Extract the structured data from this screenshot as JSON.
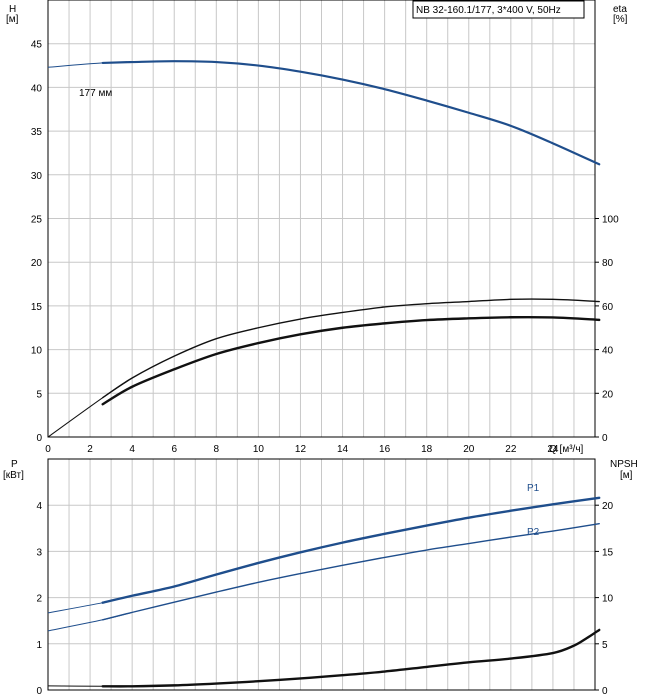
{
  "colors": {
    "grid": "#c8c8c8",
    "axis": "#000000",
    "head_curve": "#1f4e8c",
    "power_curve": "#1f4e8c",
    "eta_curve": "#111111",
    "npsh_curve": "#111111"
  },
  "chart_data": [
    {
      "type": "line",
      "title": "NB 32-160.1/177, 3*400 V, 50Hz",
      "xlabel": "Q [м³/ч]",
      "ylabel_left_name": "H",
      "ylabel_left_unit": "[м]",
      "ylabel_right_name": "eta",
      "ylabel_right_unit": "[%]",
      "xlim": [
        0,
        26
      ],
      "ylim_left": [
        0,
        50
      ],
      "ylim_right": [
        0,
        200
      ],
      "x_ticks": [
        0,
        2,
        4,
        6,
        8,
        10,
        12,
        14,
        16,
        18,
        20,
        22,
        24
      ],
      "y_ticks_left": [
        0,
        5,
        10,
        15,
        20,
        25,
        30,
        35,
        40,
        45
      ],
      "y_ticks_right": [
        0,
        20,
        40,
        60,
        80,
        100
      ],
      "grid": true,
      "annotations": [
        {
          "text": "177 мм",
          "x": 4.8,
          "y": 42.7
        }
      ],
      "series": [
        {
          "name": "177 мм",
          "axis": "left",
          "x": [
            0,
            2.6,
            4,
            6,
            8,
            10,
            12,
            14,
            16,
            18,
            20,
            22,
            24,
            26.2
          ],
          "y": [
            42.3,
            42.8,
            42.9,
            43.0,
            42.9,
            42.5,
            41.8,
            40.9,
            39.8,
            38.5,
            37.1,
            35.6,
            33.6,
            31.2
          ]
        },
        {
          "axis": "right",
          "x": [
            0,
            2.6,
            4,
            6,
            8,
            10,
            12,
            14,
            16,
            18,
            20,
            22,
            24,
            26.2
          ],
          "y": [
            0,
            18,
            27,
            37,
            45,
            50,
            54,
            57,
            59.5,
            61,
            62,
            63,
            63,
            62
          ]
        },
        {
          "axis": "right",
          "x": [
            2.6,
            4,
            6,
            8,
            10,
            12,
            14,
            16,
            18,
            20,
            22,
            24,
            26.2
          ],
          "y": [
            15,
            23,
            31,
            38,
            43,
            47,
            50,
            52,
            53.5,
            54.3,
            54.8,
            54.7,
            53.6
          ]
        }
      ]
    },
    {
      "type": "line",
      "ylabel_left_name": "P",
      "ylabel_left_unit": "[кВт]",
      "ylabel_right_name": "NPSH",
      "ylabel_right_unit": "[м]",
      "xlim": [
        0,
        26
      ],
      "ylim_left": [
        0,
        5
      ],
      "ylim_right": [
        0,
        25
      ],
      "y_ticks_left": [
        0,
        1,
        2,
        3,
        4
      ],
      "y_ticks_right": [
        0,
        5,
        10,
        15,
        20
      ],
      "grid": true,
      "series": [
        {
          "name": "P1",
          "axis": "left",
          "x": [
            0,
            2.6,
            4,
            6,
            8,
            10,
            12,
            14,
            16,
            18,
            20,
            22,
            24,
            26.2
          ],
          "y": [
            1.67,
            1.89,
            2.04,
            2.24,
            2.5,
            2.75,
            2.98,
            3.19,
            3.38,
            3.56,
            3.73,
            3.88,
            4.02,
            4.16
          ]
        },
        {
          "name": "P2",
          "axis": "left",
          "x": [
            0,
            2.6,
            4,
            6,
            8,
            10,
            12,
            14,
            16,
            18,
            20,
            22,
            24,
            26.2
          ],
          "y": [
            1.28,
            1.52,
            1.68,
            1.9,
            2.12,
            2.33,
            2.52,
            2.7,
            2.87,
            3.03,
            3.17,
            3.31,
            3.44,
            3.6
          ]
        },
        {
          "axis": "right",
          "x": [
            0,
            2.6,
            4,
            6,
            8,
            10,
            12,
            14,
            16,
            18,
            20,
            22,
            24,
            25,
            25.6,
            26.2
          ],
          "y": [
            0.45,
            0.4,
            0.4,
            0.5,
            0.7,
            0.95,
            1.25,
            1.6,
            2.0,
            2.5,
            3.0,
            3.4,
            4.0,
            4.8,
            5.6,
            6.5
          ]
        }
      ]
    }
  ]
}
